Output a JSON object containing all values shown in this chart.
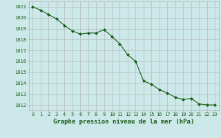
{
  "x": [
    0,
    1,
    2,
    3,
    4,
    5,
    6,
    7,
    8,
    9,
    10,
    11,
    12,
    13,
    14,
    15,
    16,
    17,
    18,
    19,
    20,
    21,
    22,
    23
  ],
  "y": [
    1021.0,
    1020.7,
    1020.3,
    1019.9,
    1019.3,
    1018.8,
    1018.5,
    1018.6,
    1018.6,
    1018.9,
    1018.3,
    1017.6,
    1016.6,
    1016.0,
    1014.2,
    1013.9,
    1013.4,
    1013.1,
    1012.7,
    1012.5,
    1012.6,
    1012.1,
    1012.0,
    1012.0
  ],
  "line_color": "#1a5c1a",
  "marker": "D",
  "marker_size": 2.0,
  "bg_color": "#cce8e8",
  "grid_color": "#b0b0b0",
  "title": "Graphe pression niveau de la mer (hPa)",
  "title_color": "#1a5c1a",
  "xlim": [
    -0.5,
    23.5
  ],
  "ylim": [
    1011.5,
    1021.5
  ],
  "yticks": [
    1012,
    1013,
    1014,
    1015,
    1016,
    1017,
    1018,
    1019,
    1020,
    1021
  ],
  "xticks": [
    0,
    1,
    2,
    3,
    4,
    5,
    6,
    7,
    8,
    9,
    10,
    11,
    12,
    13,
    14,
    15,
    16,
    17,
    18,
    19,
    20,
    21,
    22,
    23
  ],
  "tick_fontsize": 5.0,
  "title_fontsize": 6.5,
  "line_width": 0.8
}
